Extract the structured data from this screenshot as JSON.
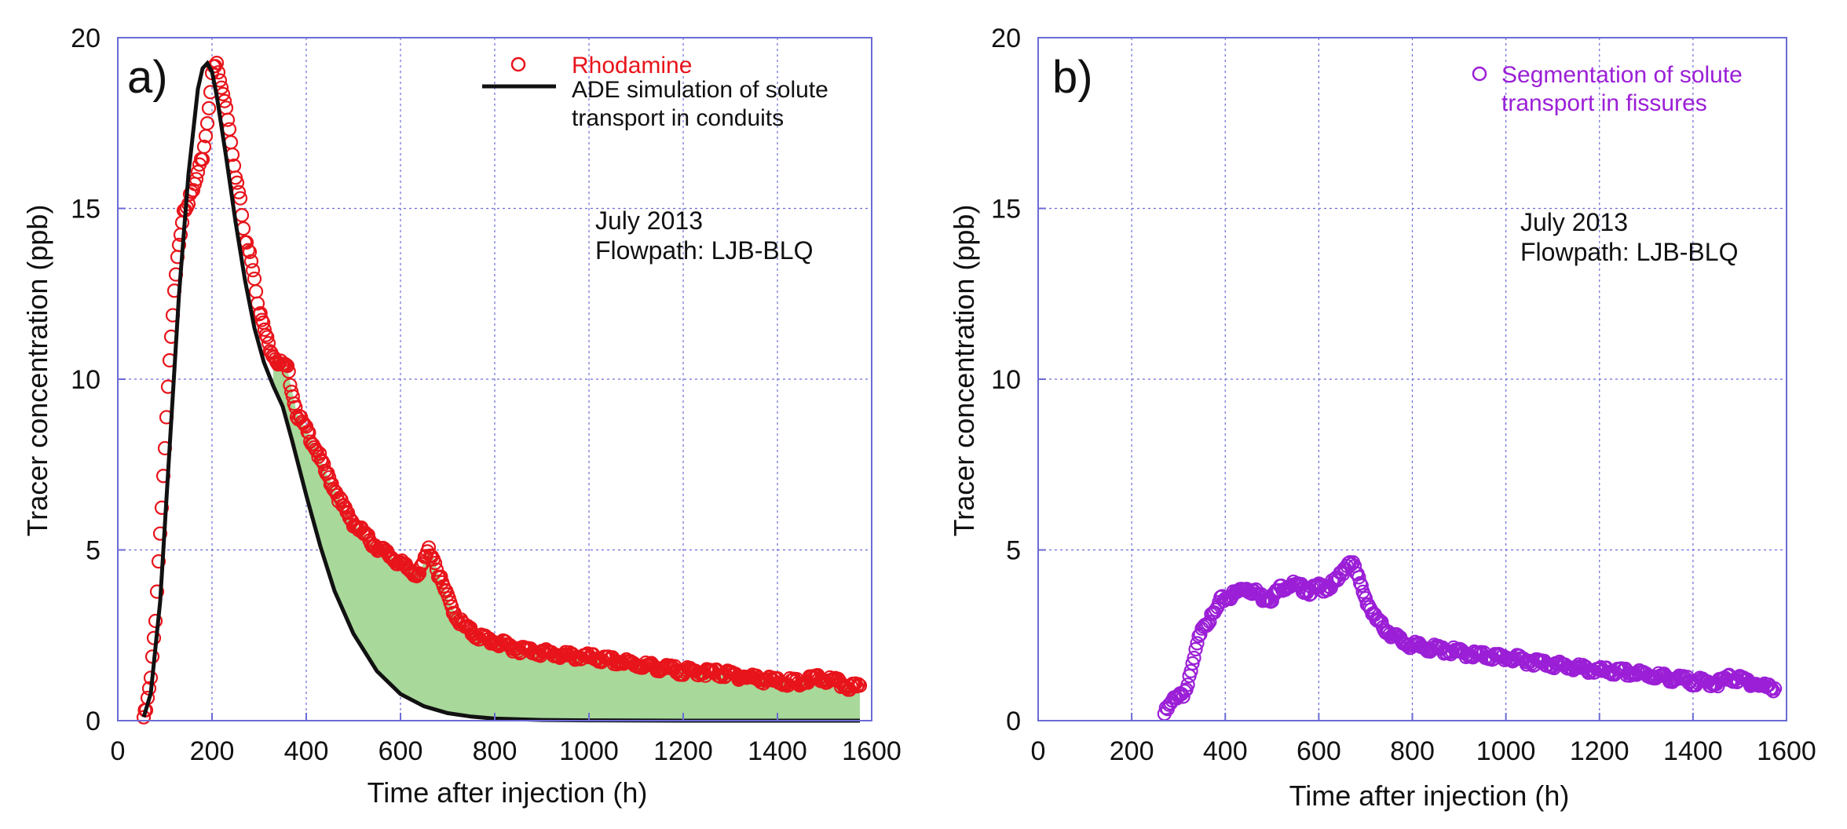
{
  "chart_data": [
    {
      "type": "scatter",
      "panel_label": "a)",
      "xlabel": "Time after injection (h)",
      "ylabel": "Tracer concentration (ppb)",
      "xlim": [
        0,
        1600
      ],
      "ylim": [
        0,
        20
      ],
      "xticks": [
        0,
        200,
        400,
        600,
        800,
        1000,
        1200,
        1400,
        1600
      ],
      "yticks": [
        0,
        5,
        10,
        15,
        20
      ],
      "grid": true,
      "legend_position": "top-right",
      "annotation": [
        "July 2013",
        "Flowpath: LJB-BLQ"
      ],
      "series": [
        {
          "name": "Rhodamine",
          "kind": "scatter",
          "color": "#e8141b",
          "x": [
            55,
            60,
            70,
            80,
            90,
            100,
            110,
            120,
            130,
            140,
            150,
            160,
            170,
            180,
            190,
            200,
            210,
            220,
            230,
            240,
            250,
            260,
            270,
            280,
            290,
            300,
            320,
            340,
            360,
            380,
            400,
            420,
            440,
            460,
            480,
            500,
            520,
            540,
            560,
            580,
            600,
            620,
            640,
            660,
            670,
            680,
            700,
            720,
            740,
            760,
            780,
            800,
            850,
            900,
            950,
            1000,
            1050,
            1100,
            1150,
            1200,
            1250,
            1300,
            1350,
            1400,
            1450,
            1480,
            1500,
            1520,
            1550,
            1575
          ],
          "y": [
            0.1,
            0.3,
            1.2,
            3.0,
            5.5,
            8.0,
            10.5,
            12.5,
            14.0,
            15.0,
            15.2,
            15.5,
            16.0,
            16.5,
            17.5,
            19.0,
            19.2,
            18.5,
            18.0,
            17.0,
            16.0,
            15.2,
            14.0,
            13.8,
            13.0,
            12.0,
            11.0,
            10.5,
            10.3,
            9.0,
            8.5,
            8.0,
            7.3,
            6.8,
            6.2,
            5.8,
            5.5,
            5.2,
            5.0,
            4.8,
            4.6,
            4.4,
            4.3,
            5.0,
            4.8,
            4.3,
            3.6,
            3.0,
            2.7,
            2.5,
            2.4,
            2.3,
            2.1,
            2.0,
            1.9,
            1.85,
            1.75,
            1.65,
            1.55,
            1.45,
            1.42,
            1.35,
            1.25,
            1.15,
            1.1,
            1.25,
            1.2,
            1.15,
            1.0,
            0.95
          ]
        },
        {
          "name": "ADE simulation of solute transport in conduits",
          "kind": "line",
          "color": "#111111",
          "x": [
            55,
            70,
            90,
            110,
            130,
            150,
            170,
            180,
            190,
            200,
            210,
            230,
            250,
            270,
            290,
            310,
            330,
            350,
            370,
            400,
            430,
            460,
            500,
            550,
            600,
            650,
            700,
            750,
            800,
            900,
            1000,
            1200,
            1400,
            1575
          ],
          "y": [
            0.1,
            0.8,
            3.5,
            8.0,
            12.5,
            16.0,
            18.5,
            19.1,
            19.25,
            19.0,
            18.3,
            16.5,
            14.6,
            12.9,
            11.5,
            10.5,
            9.8,
            9.2,
            8.2,
            6.6,
            5.1,
            3.8,
            2.55,
            1.45,
            0.78,
            0.42,
            0.22,
            0.12,
            0.06,
            0.02,
            0.01,
            0.0,
            0.0,
            0.0
          ]
        }
      ]
    },
    {
      "type": "scatter",
      "panel_label": "b)",
      "xlabel": "Time after injection (h)",
      "ylabel": "Tracer concentration (ppb)",
      "xlim": [
        0,
        1600
      ],
      "ylim": [
        0,
        20
      ],
      "xticks": [
        0,
        200,
        400,
        600,
        800,
        1000,
        1200,
        1400,
        1600
      ],
      "yticks": [
        0,
        5,
        10,
        15,
        20
      ],
      "grid": true,
      "legend_position": "top-right",
      "annotation": [
        "July 2013",
        "Flowpath: LJB-BLQ"
      ],
      "series": [
        {
          "name": "Segmentation of solute transport in fissures",
          "legend_lines": [
            "Segmentation of solute",
            "transport in fissures"
          ],
          "kind": "scatter",
          "color": "#9b1fd6",
          "x": [
            270,
            280,
            290,
            300,
            310,
            320,
            330,
            340,
            350,
            360,
            370,
            380,
            390,
            400,
            420,
            440,
            460,
            480,
            500,
            520,
            540,
            560,
            580,
            600,
            620,
            640,
            660,
            670,
            680,
            700,
            720,
            740,
            760,
            780,
            800,
            850,
            900,
            950,
            1000,
            1050,
            1100,
            1150,
            1200,
            1250,
            1300,
            1350,
            1400,
            1450,
            1480,
            1500,
            1520,
            1550,
            1575
          ],
          "y": [
            0.2,
            0.4,
            0.6,
            0.8,
            0.8,
            1.0,
            1.6,
            2.2,
            2.8,
            2.9,
            3.0,
            3.2,
            3.5,
            3.6,
            3.7,
            3.9,
            3.8,
            3.6,
            3.6,
            3.9,
            4.0,
            3.9,
            3.8,
            3.9,
            3.9,
            4.1,
            4.6,
            4.7,
            4.3,
            3.6,
            3.0,
            2.7,
            2.5,
            2.3,
            2.2,
            2.1,
            2.0,
            1.9,
            1.85,
            1.75,
            1.65,
            1.55,
            1.45,
            1.42,
            1.35,
            1.25,
            1.15,
            1.1,
            1.25,
            1.2,
            1.15,
            1.0,
            0.95
          ]
        }
      ]
    }
  ]
}
